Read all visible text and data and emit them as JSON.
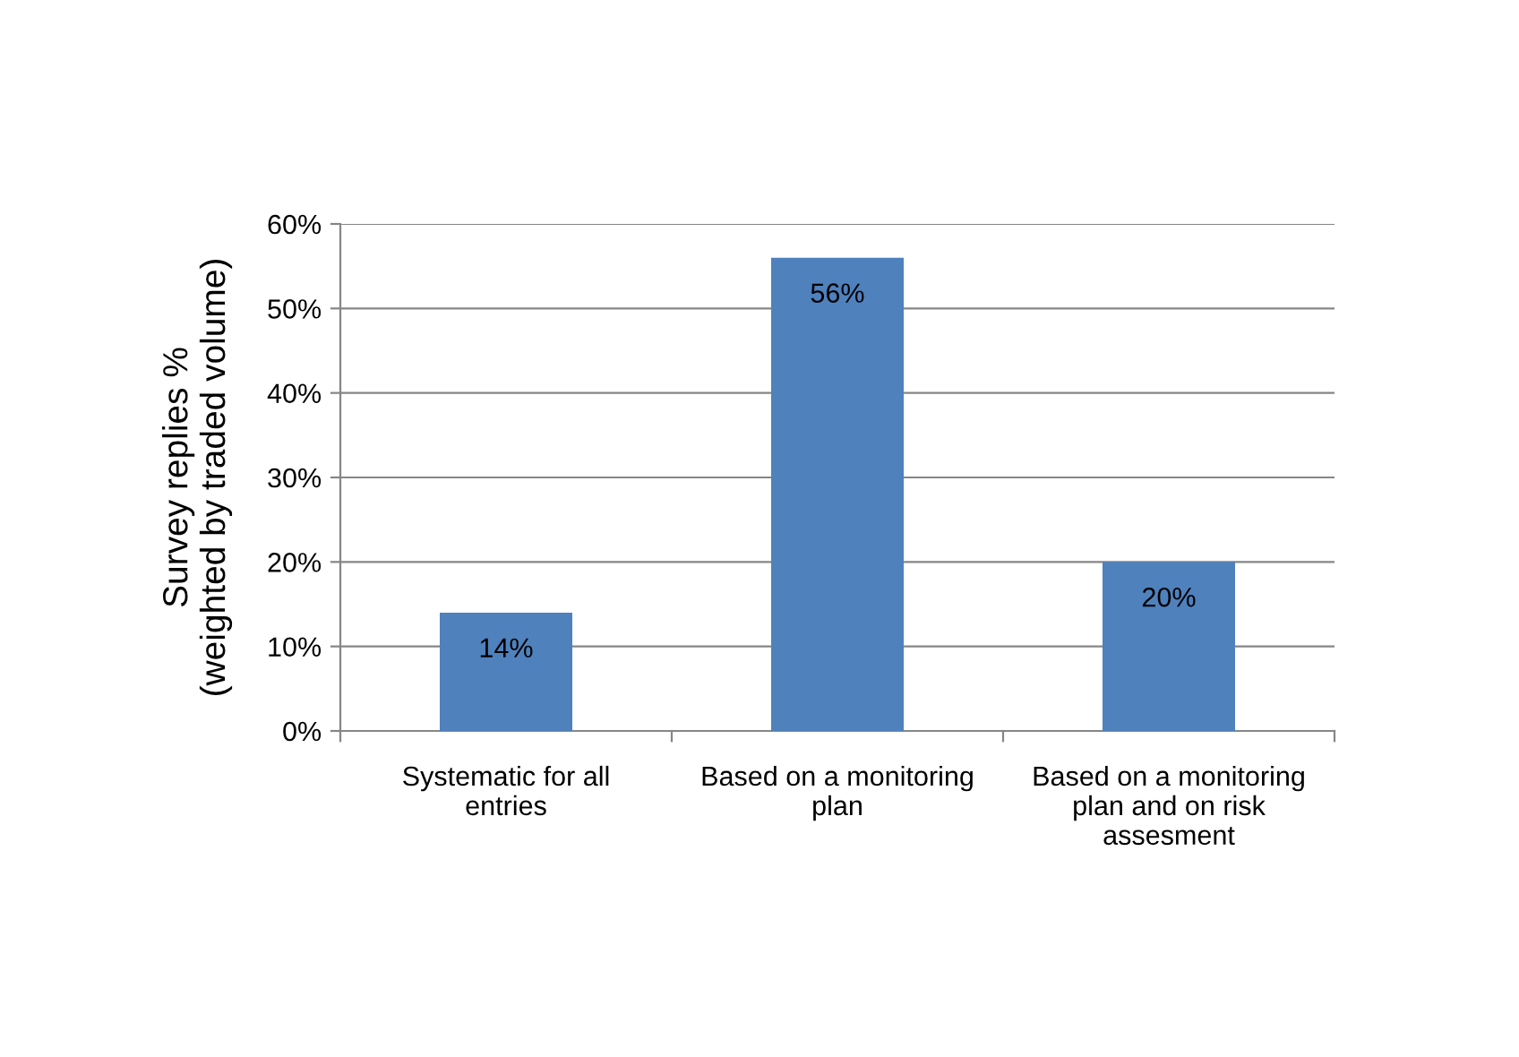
{
  "chart_data": {
    "type": "bar",
    "ylabel": "Survey replies %\n(weighted by traded volume)",
    "categories": [
      "Systematic for all\nentries",
      "Based on a monitoring\nplan",
      "Based on a monitoring\nplan and on risk\nassesment"
    ],
    "values": [
      14,
      56,
      20
    ],
    "value_labels": [
      "14%",
      "56%",
      "20%"
    ],
    "color": "#4f81bd",
    "ylim": [
      0,
      60
    ],
    "yticks": [
      {
        "value": 0,
        "label": "0%"
      },
      {
        "value": 10,
        "label": "10%"
      },
      {
        "value": 20,
        "label": "20%"
      },
      {
        "value": 30,
        "label": "30%"
      },
      {
        "value": 40,
        "label": "40%"
      },
      {
        "value": 50,
        "label": "50%"
      },
      {
        "value": 60,
        "label": "60%"
      }
    ],
    "grid": "y"
  }
}
